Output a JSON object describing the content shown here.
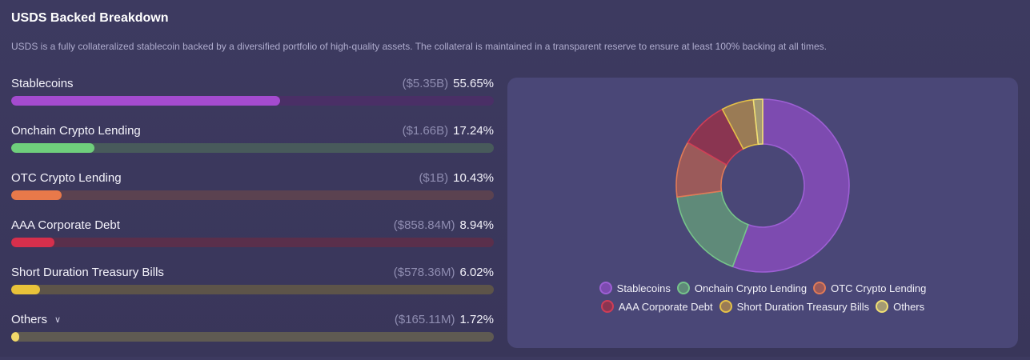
{
  "header": {
    "title": "USDS Backed Breakdown",
    "description": "USDS is a fully collateralized stablecoin backed by a diversified portfolio of high-quality assets. The collateral is maintained in a transparent reserve to ensure at least 100% backing at all times."
  },
  "breakdown": [
    {
      "label": "Stablecoins",
      "amount": "($5.35B)",
      "percent_label": "55.65%",
      "color": "#a44bcf",
      "track_color": "#4a2f66",
      "expandable": false
    },
    {
      "label": "Onchain Crypto Lending",
      "amount": "($1.66B)",
      "percent_label": "17.24%",
      "color": "#6fcf7c",
      "track_color": "#485a5b",
      "expandable": false
    },
    {
      "label": "OTC Crypto Lending",
      "amount": "($1B)",
      "percent_label": "10.43%",
      "color": "#e8794a",
      "track_color": "#5b4250",
      "expandable": false
    },
    {
      "label": "AAA Corporate Debt",
      "amount": "($858.84M)",
      "percent_label": "8.94%",
      "color": "#d62f4c",
      "track_color": "#5a2f4b",
      "expandable": false
    },
    {
      "label": "Short Duration Treasury Bills",
      "amount": "($578.36M)",
      "percent_label": "6.02%",
      "color": "#e8c23a",
      "track_color": "#5d5449",
      "expandable": false
    },
    {
      "label": "Others",
      "amount": "($165.11M)",
      "percent_label": "1.72%",
      "color": "#f2d96a",
      "track_color": "#5f5a52",
      "expandable": true
    }
  ],
  "chart_data": {
    "type": "pie",
    "variant": "donut",
    "categories": [
      "Stablecoins",
      "Onchain Crypto Lending",
      "OTC Crypto Lending",
      "AAA Corporate Debt",
      "Short Duration Treasury Bills",
      "Others"
    ],
    "values": [
      55.65,
      17.24,
      10.43,
      8.94,
      6.02,
      1.72
    ],
    "colors": [
      "#7d4bb0",
      "#5f8a79",
      "#9b5a5a",
      "#8a3551",
      "#9a7b55",
      "#a49a73"
    ],
    "stroke_colors": [
      "#9d5fd4",
      "#76c48a",
      "#e07a57",
      "#cf3d57",
      "#e3c048",
      "#f0df74"
    ],
    "legend_placement": "bottom"
  },
  "icons": {
    "chevron": "chevron-down-icon"
  }
}
